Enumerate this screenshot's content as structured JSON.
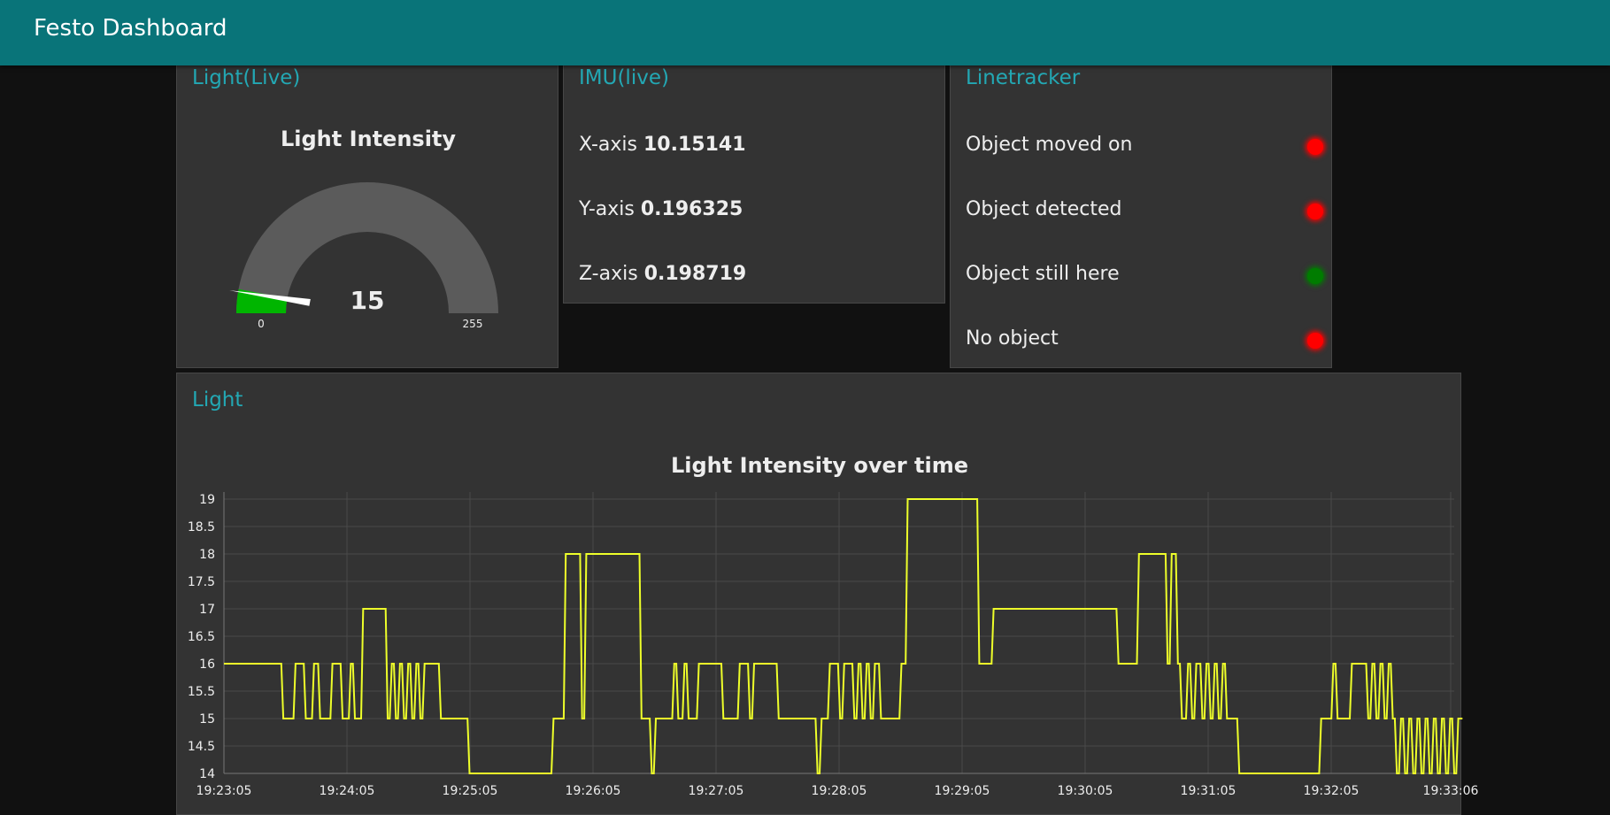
{
  "header": {
    "title": "Festo Dashboard",
    "color": "#097479"
  },
  "light_live": {
    "card_title": "Light(Live)",
    "gauge_title": "Light Intensity",
    "value": 15,
    "value_label": "15",
    "min": 0,
    "max": 255,
    "min_label": "0",
    "max_label": "255",
    "fill_color": "#00b500"
  },
  "imu": {
    "card_title": "IMU(live)",
    "rows": [
      {
        "label": "X-axis",
        "value": "10.15141"
      },
      {
        "label": "Y-axis",
        "value": "0.196325"
      },
      {
        "label": "Z-axis",
        "value": "0.198719"
      }
    ]
  },
  "linetracker": {
    "card_title": "Linetracker",
    "rows": [
      {
        "label": "Object moved on",
        "status": "red"
      },
      {
        "label": "Object detected",
        "status": "red"
      },
      {
        "label": "Object still here",
        "status": "green"
      },
      {
        "label": "No object",
        "status": "red"
      }
    ],
    "colors": {
      "red": "#ff0000",
      "green": "#007c00"
    }
  },
  "light_chart": {
    "card_title": "Light"
  },
  "chart_data": {
    "type": "line",
    "title": "Light Intensity over time",
    "xlabel": "",
    "ylabel": "",
    "ylim": [
      14,
      19
    ],
    "yticks": [
      "19",
      "18.5",
      "18",
      "17.5",
      "17",
      "16.5",
      "16",
      "15.5",
      "15",
      "14.5",
      "14"
    ],
    "xticks": [
      "19:23:05",
      "19:24:05",
      "19:25:05",
      "19:26:05",
      "19:27:05",
      "19:28:05",
      "19:29:05",
      "19:30:05",
      "19:31:05",
      "19:32:05",
      "19:33:06"
    ],
    "grid": true,
    "line_color": "#eeff2a",
    "series": [
      {
        "x_seconds_from_start": [
          0,
          28,
          29,
          34,
          35,
          39,
          40,
          43,
          44,
          46,
          47,
          52,
          53,
          57,
          58,
          61,
          62,
          63,
          64,
          67,
          68,
          79,
          80,
          81,
          82,
          83,
          84,
          85,
          86,
          87,
          88,
          89,
          90,
          91,
          92,
          93,
          94,
          95,
          96,
          97,
          98,
          105,
          106,
          119,
          120,
          160,
          161,
          166,
          167,
          174,
          175,
          176,
          177,
          203,
          204,
          208,
          209,
          210,
          211,
          219,
          220,
          221,
          222,
          224,
          225,
          226,
          227,
          231,
          232,
          243,
          244,
          251,
          252,
          256,
          257,
          258,
          259,
          270,
          271,
          289,
          290,
          291,
          292,
          295,
          296,
          300,
          301,
          302,
          303,
          307,
          308,
          309,
          310,
          311,
          312,
          313,
          314,
          315,
          316,
          317,
          318,
          320,
          321,
          330,
          331,
          333,
          334,
          368,
          369,
          375,
          376,
          436,
          437,
          446,
          447,
          460,
          461,
          462,
          463,
          465,
          466,
          467,
          468,
          470,
          471,
          472,
          473,
          474,
          475,
          477,
          478,
          479,
          480,
          481,
          482,
          483,
          484,
          485,
          486,
          487,
          488,
          489,
          490,
          495,
          496,
          535,
          536,
          541,
          542,
          543,
          544,
          550,
          551,
          558,
          559,
          560,
          561,
          562,
          563,
          564,
          565,
          566,
          567,
          568,
          569,
          570,
          571,
          572,
          573,
          574,
          575,
          576,
          577,
          578,
          579,
          580,
          581,
          582,
          583,
          584,
          585,
          586,
          587,
          588,
          589,
          590,
          591,
          592,
          593,
          594,
          595,
          596,
          597,
          598,
          599,
          600,
          601,
          602,
          603,
          605
        ],
        "values": [
          16,
          16,
          15,
          15,
          16,
          16,
          15,
          15,
          16,
          16,
          15,
          15,
          16,
          16,
          15,
          15,
          16,
          16,
          15,
          15,
          17,
          17,
          15,
          15,
          16,
          16,
          15,
          15,
          16,
          16,
          15,
          15,
          16,
          16,
          15,
          15,
          16,
          16,
          15,
          15,
          16,
          16,
          15,
          15,
          14,
          14,
          15,
          15,
          18,
          18,
          15,
          15,
          18,
          18,
          15,
          15,
          14,
          14,
          15,
          15,
          16,
          16,
          15,
          15,
          16,
          16,
          15,
          15,
          16,
          16,
          15,
          15,
          16,
          16,
          15,
          15,
          16,
          16,
          15,
          15,
          14,
          14,
          15,
          15,
          16,
          16,
          15,
          15,
          16,
          16,
          15,
          15,
          16,
          16,
          15,
          15,
          16,
          16,
          15,
          15,
          16,
          16,
          15,
          15,
          16,
          16,
          19,
          19,
          16,
          16,
          17,
          17,
          16,
          16,
          18,
          18,
          16,
          16,
          18,
          18,
          16,
          16,
          15,
          15,
          16,
          16,
          15,
          15,
          16,
          16,
          15,
          15,
          16,
          16,
          15,
          15,
          16,
          16,
          15,
          15,
          16,
          16,
          15,
          15,
          14,
          14,
          15,
          15,
          16,
          16,
          15,
          15,
          16,
          16,
          15,
          15,
          16,
          16,
          15,
          15,
          16,
          16,
          15,
          15,
          16,
          16,
          15,
          15,
          14,
          14,
          15,
          15,
          14,
          14,
          15,
          15,
          14,
          14,
          15,
          15,
          14,
          14,
          15,
          15,
          14,
          14,
          15,
          15,
          14,
          14,
          15,
          15,
          14,
          14,
          15,
          15,
          14,
          14,
          15,
          15,
          15
        ]
      }
    ]
  }
}
